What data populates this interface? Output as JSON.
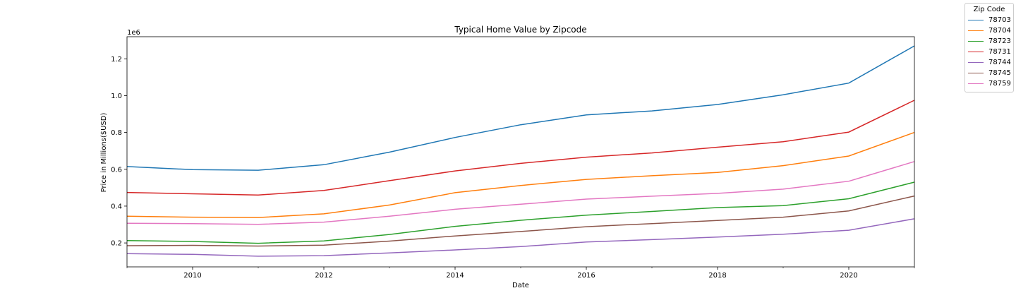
{
  "chart_data": {
    "type": "line",
    "title": "Typical Home Value by Zipcode",
    "xlabel": "Date",
    "ylabel": "Price in Millions($USD)",
    "y_offset_label": "1e6",
    "x": [
      2009,
      2010,
      2011,
      2012,
      2013,
      2014,
      2015,
      2016,
      2017,
      2018,
      2019,
      2020,
      2021
    ],
    "xlim": [
      2009,
      2021
    ],
    "ylim": [
      0.07,
      1.32
    ],
    "x_ticks": [
      "2010",
      "2012",
      "2014",
      "2016",
      "2018",
      "2020"
    ],
    "y_ticks": [
      "0.2",
      "0.4",
      "0.6",
      "0.8",
      "1.0",
      "1.2"
    ],
    "grid": false,
    "legend": {
      "title": "Zip Code",
      "placement": "top-right outside plot"
    },
    "series": [
      {
        "name": "78703",
        "color": "#1f77b4",
        "values": [
          0.615,
          0.598,
          0.595,
          0.625,
          0.693,
          0.773,
          0.842,
          0.895,
          0.917,
          0.952,
          1.005,
          1.068,
          1.27
        ]
      },
      {
        "name": "78704",
        "color": "#ff7f0e",
        "values": [
          0.345,
          0.34,
          0.338,
          0.358,
          0.406,
          0.473,
          0.512,
          0.545,
          0.565,
          0.583,
          0.62,
          0.672,
          0.8
        ]
      },
      {
        "name": "78723",
        "color": "#2ca02c",
        "values": [
          0.213,
          0.208,
          0.198,
          0.211,
          0.246,
          0.29,
          0.323,
          0.351,
          0.371,
          0.392,
          0.403,
          0.44,
          0.53
        ]
      },
      {
        "name": "78731",
        "color": "#d62728",
        "values": [
          0.474,
          0.467,
          0.46,
          0.485,
          0.538,
          0.591,
          0.632,
          0.666,
          0.689,
          0.72,
          0.75,
          0.802,
          0.975
        ]
      },
      {
        "name": "78744",
        "color": "#9467bd",
        "values": [
          0.142,
          0.138,
          0.128,
          0.131,
          0.146,
          0.162,
          0.18,
          0.205,
          0.218,
          0.232,
          0.247,
          0.269,
          0.331
        ]
      },
      {
        "name": "78745",
        "color": "#8c564b",
        "values": [
          0.185,
          0.187,
          0.183,
          0.188,
          0.21,
          0.238,
          0.262,
          0.288,
          0.305,
          0.322,
          0.34,
          0.374,
          0.455
        ]
      },
      {
        "name": "78759",
        "color": "#e377c2",
        "values": [
          0.307,
          0.305,
          0.301,
          0.313,
          0.345,
          0.383,
          0.41,
          0.438,
          0.454,
          0.469,
          0.492,
          0.535,
          0.642
        ]
      }
    ]
  }
}
